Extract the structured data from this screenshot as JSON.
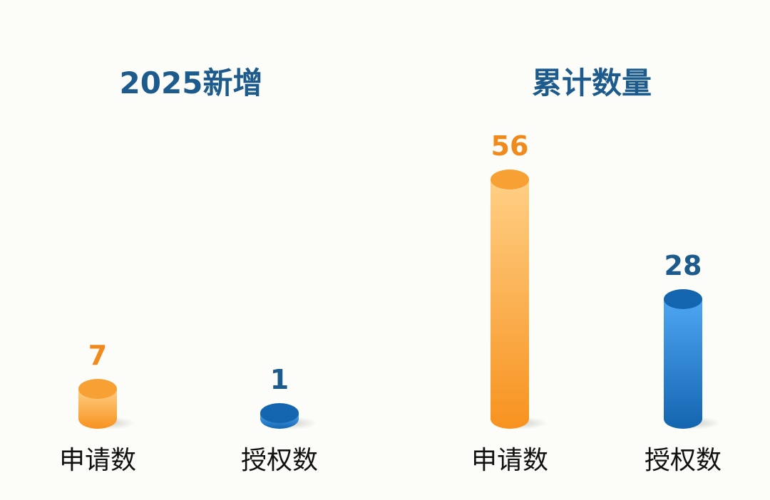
{
  "colors": {
    "orange_light": "#ffcc80",
    "orange": "#f7a034",
    "orange_dark": "#f08a1c",
    "blue_light": "#4aa3f0",
    "blue": "#2b7fd6",
    "blue_dark": "#1465b0",
    "orange_label": "#f08a1c",
    "blue_label": "#1d5b8c",
    "title": "#1d5b8c"
  },
  "chart_data": [
    {
      "type": "bar",
      "title": "2025新增",
      "categories": [
        "申请数",
        "授权数"
      ],
      "values": [
        7,
        1
      ],
      "style": "3d-cylinder",
      "bar_colors": [
        "orange",
        "blue"
      ],
      "data_labels": true,
      "grid": false
    },
    {
      "type": "bar",
      "title": "累计数量",
      "categories": [
        "申请数",
        "授权数"
      ],
      "values": [
        56,
        28
      ],
      "style": "3d-cylinder",
      "bar_colors": [
        "orange",
        "blue"
      ],
      "data_labels": true,
      "grid": false
    }
  ]
}
